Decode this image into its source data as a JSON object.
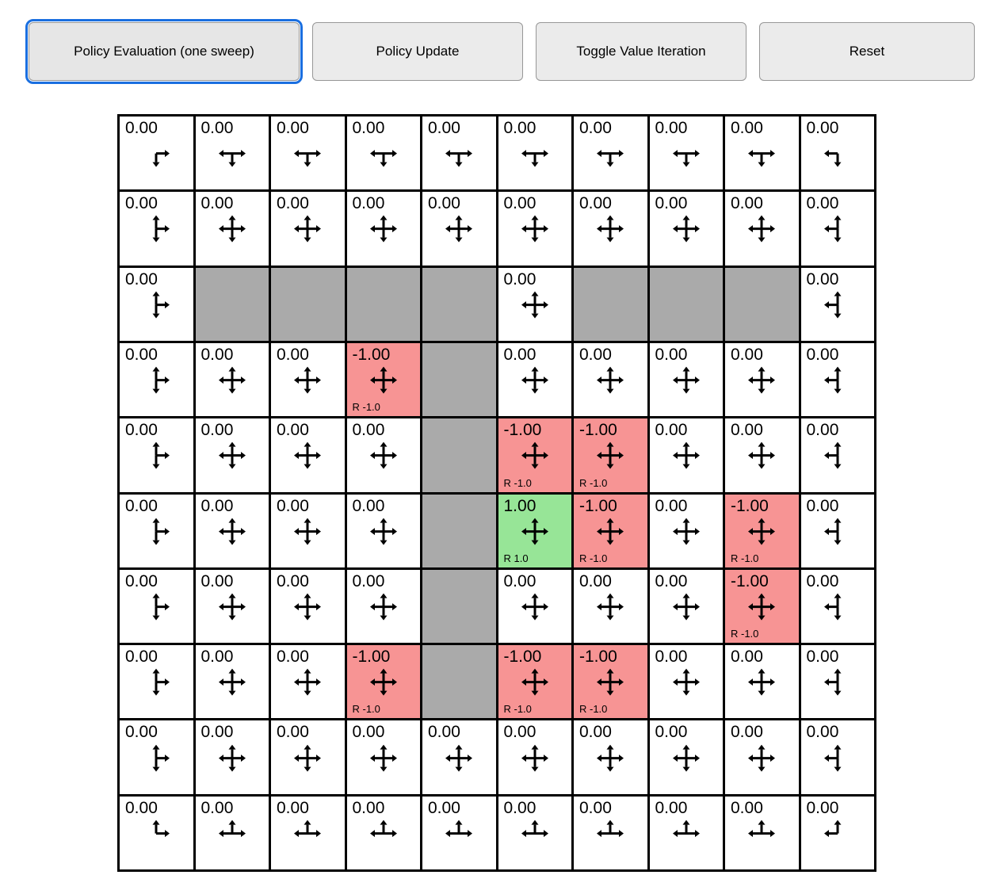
{
  "colors": {
    "accent_focus": "#1a6fe0",
    "wall": "#aaaaaa",
    "negative_reward": "#f79494",
    "positive_reward": "#97e597"
  },
  "toolbar": {
    "buttons": [
      {
        "label": "Policy Evaluation (one sweep)",
        "active": true
      },
      {
        "label": "Policy Update",
        "active": false
      },
      {
        "label": "Toggle Value Iteration",
        "active": false
      },
      {
        "label": "Reset",
        "active": false
      }
    ]
  },
  "grid": {
    "rows": 10,
    "cols": 10,
    "cells": [
      [
        {
          "value": "0.00",
          "arrows": [
            "down",
            "right"
          ]
        },
        {
          "value": "0.00",
          "arrows": [
            "down",
            "left",
            "right"
          ]
        },
        {
          "value": "0.00",
          "arrows": [
            "down",
            "left",
            "right"
          ]
        },
        {
          "value": "0.00",
          "arrows": [
            "down",
            "left",
            "right"
          ]
        },
        {
          "value": "0.00",
          "arrows": [
            "down",
            "left",
            "right"
          ]
        },
        {
          "value": "0.00",
          "arrows": [
            "down",
            "left",
            "right"
          ]
        },
        {
          "value": "0.00",
          "arrows": [
            "down",
            "left",
            "right"
          ]
        },
        {
          "value": "0.00",
          "arrows": [
            "down",
            "left",
            "right"
          ]
        },
        {
          "value": "0.00",
          "arrows": [
            "down",
            "left",
            "right"
          ]
        },
        {
          "value": "0.00",
          "arrows": [
            "down",
            "left"
          ]
        }
      ],
      [
        {
          "value": "0.00",
          "arrows": [
            "up",
            "down",
            "right"
          ]
        },
        {
          "value": "0.00",
          "arrows": [
            "up",
            "down",
            "left",
            "right"
          ]
        },
        {
          "value": "0.00",
          "arrows": [
            "up",
            "down",
            "left",
            "right"
          ]
        },
        {
          "value": "0.00",
          "arrows": [
            "up",
            "down",
            "left",
            "right"
          ]
        },
        {
          "value": "0.00",
          "arrows": [
            "up",
            "down",
            "left",
            "right"
          ]
        },
        {
          "value": "0.00",
          "arrows": [
            "up",
            "down",
            "left",
            "right"
          ]
        },
        {
          "value": "0.00",
          "arrows": [
            "up",
            "down",
            "left",
            "right"
          ]
        },
        {
          "value": "0.00",
          "arrows": [
            "up",
            "down",
            "left",
            "right"
          ]
        },
        {
          "value": "0.00",
          "arrows": [
            "up",
            "down",
            "left",
            "right"
          ]
        },
        {
          "value": "0.00",
          "arrows": [
            "up",
            "down",
            "left"
          ]
        }
      ],
      [
        {
          "value": "0.00",
          "arrows": [
            "up",
            "down",
            "right"
          ]
        },
        {
          "type": "wall"
        },
        {
          "type": "wall"
        },
        {
          "type": "wall"
        },
        {
          "type": "wall"
        },
        {
          "value": "0.00",
          "arrows": [
            "up",
            "down",
            "left",
            "right"
          ]
        },
        {
          "type": "wall"
        },
        {
          "type": "wall"
        },
        {
          "type": "wall"
        },
        {
          "value": "0.00",
          "arrows": [
            "up",
            "down",
            "left"
          ]
        }
      ],
      [
        {
          "value": "0.00",
          "arrows": [
            "up",
            "down",
            "right"
          ]
        },
        {
          "value": "0.00",
          "arrows": [
            "up",
            "down",
            "left",
            "right"
          ]
        },
        {
          "value": "0.00",
          "arrows": [
            "up",
            "down",
            "left",
            "right"
          ]
        },
        {
          "value": "-1.00",
          "type": "negative",
          "reward": "R -1.0",
          "arrows": [
            "up",
            "down",
            "left",
            "right"
          ]
        },
        {
          "type": "wall"
        },
        {
          "value": "0.00",
          "arrows": [
            "up",
            "down",
            "left",
            "right"
          ]
        },
        {
          "value": "0.00",
          "arrows": [
            "up",
            "down",
            "left",
            "right"
          ]
        },
        {
          "value": "0.00",
          "arrows": [
            "up",
            "down",
            "left",
            "right"
          ]
        },
        {
          "value": "0.00",
          "arrows": [
            "up",
            "down",
            "left",
            "right"
          ]
        },
        {
          "value": "0.00",
          "arrows": [
            "up",
            "down",
            "left"
          ]
        }
      ],
      [
        {
          "value": "0.00",
          "arrows": [
            "up",
            "down",
            "right"
          ]
        },
        {
          "value": "0.00",
          "arrows": [
            "up",
            "down",
            "left",
            "right"
          ]
        },
        {
          "value": "0.00",
          "arrows": [
            "up",
            "down",
            "left",
            "right"
          ]
        },
        {
          "value": "0.00",
          "arrows": [
            "up",
            "down",
            "left",
            "right"
          ]
        },
        {
          "type": "wall"
        },
        {
          "value": "-1.00",
          "type": "negative",
          "reward": "R -1.0",
          "arrows": [
            "up",
            "down",
            "left",
            "right"
          ]
        },
        {
          "value": "-1.00",
          "type": "negative",
          "reward": "R -1.0",
          "arrows": [
            "up",
            "down",
            "left",
            "right"
          ]
        },
        {
          "value": "0.00",
          "arrows": [
            "up",
            "down",
            "left",
            "right"
          ]
        },
        {
          "value": "0.00",
          "arrows": [
            "up",
            "down",
            "left",
            "right"
          ]
        },
        {
          "value": "0.00",
          "arrows": [
            "up",
            "down",
            "left"
          ]
        }
      ],
      [
        {
          "value": "0.00",
          "arrows": [
            "up",
            "down",
            "right"
          ]
        },
        {
          "value": "0.00",
          "arrows": [
            "up",
            "down",
            "left",
            "right"
          ]
        },
        {
          "value": "0.00",
          "arrows": [
            "up",
            "down",
            "left",
            "right"
          ]
        },
        {
          "value": "0.00",
          "arrows": [
            "up",
            "down",
            "left",
            "right"
          ]
        },
        {
          "type": "wall"
        },
        {
          "value": "1.00",
          "type": "positive",
          "reward": "R 1.0",
          "arrows": [
            "up",
            "down",
            "left",
            "right"
          ]
        },
        {
          "value": "-1.00",
          "type": "negative",
          "reward": "R -1.0",
          "arrows": [
            "up",
            "down",
            "left",
            "right"
          ]
        },
        {
          "value": "0.00",
          "arrows": [
            "up",
            "down",
            "left",
            "right"
          ]
        },
        {
          "value": "-1.00",
          "type": "negative",
          "reward": "R -1.0",
          "arrows": [
            "up",
            "down",
            "left",
            "right"
          ]
        },
        {
          "value": "0.00",
          "arrows": [
            "up",
            "down",
            "left"
          ]
        }
      ],
      [
        {
          "value": "0.00",
          "arrows": [
            "up",
            "down",
            "right"
          ]
        },
        {
          "value": "0.00",
          "arrows": [
            "up",
            "down",
            "left",
            "right"
          ]
        },
        {
          "value": "0.00",
          "arrows": [
            "up",
            "down",
            "left",
            "right"
          ]
        },
        {
          "value": "0.00",
          "arrows": [
            "up",
            "down",
            "left",
            "right"
          ]
        },
        {
          "type": "wall"
        },
        {
          "value": "0.00",
          "arrows": [
            "up",
            "down",
            "left",
            "right"
          ]
        },
        {
          "value": "0.00",
          "arrows": [
            "up",
            "down",
            "left",
            "right"
          ]
        },
        {
          "value": "0.00",
          "arrows": [
            "up",
            "down",
            "left",
            "right"
          ]
        },
        {
          "value": "-1.00",
          "type": "negative",
          "reward": "R -1.0",
          "arrows": [
            "up",
            "down",
            "left",
            "right"
          ]
        },
        {
          "value": "0.00",
          "arrows": [
            "up",
            "down",
            "left"
          ]
        }
      ],
      [
        {
          "value": "0.00",
          "arrows": [
            "up",
            "down",
            "right"
          ]
        },
        {
          "value": "0.00",
          "arrows": [
            "up",
            "down",
            "left",
            "right"
          ]
        },
        {
          "value": "0.00",
          "arrows": [
            "up",
            "down",
            "left",
            "right"
          ]
        },
        {
          "value": "-1.00",
          "type": "negative",
          "reward": "R -1.0",
          "arrows": [
            "up",
            "down",
            "left",
            "right"
          ]
        },
        {
          "type": "wall"
        },
        {
          "value": "-1.00",
          "type": "negative",
          "reward": "R -1.0",
          "arrows": [
            "up",
            "down",
            "left",
            "right"
          ]
        },
        {
          "value": "-1.00",
          "type": "negative",
          "reward": "R -1.0",
          "arrows": [
            "up",
            "down",
            "left",
            "right"
          ]
        },
        {
          "value": "0.00",
          "arrows": [
            "up",
            "down",
            "left",
            "right"
          ]
        },
        {
          "value": "0.00",
          "arrows": [
            "up",
            "down",
            "left",
            "right"
          ]
        },
        {
          "value": "0.00",
          "arrows": [
            "up",
            "down",
            "left"
          ]
        }
      ],
      [
        {
          "value": "0.00",
          "arrows": [
            "up",
            "down",
            "right"
          ]
        },
        {
          "value": "0.00",
          "arrows": [
            "up",
            "down",
            "left",
            "right"
          ]
        },
        {
          "value": "0.00",
          "arrows": [
            "up",
            "down",
            "left",
            "right"
          ]
        },
        {
          "value": "0.00",
          "arrows": [
            "up",
            "down",
            "left",
            "right"
          ]
        },
        {
          "value": "0.00",
          "arrows": [
            "up",
            "down",
            "left",
            "right"
          ]
        },
        {
          "value": "0.00",
          "arrows": [
            "up",
            "down",
            "left",
            "right"
          ]
        },
        {
          "value": "0.00",
          "arrows": [
            "up",
            "down",
            "left",
            "right"
          ]
        },
        {
          "value": "0.00",
          "arrows": [
            "up",
            "down",
            "left",
            "right"
          ]
        },
        {
          "value": "0.00",
          "arrows": [
            "up",
            "down",
            "left",
            "right"
          ]
        },
        {
          "value": "0.00",
          "arrows": [
            "up",
            "down",
            "left"
          ]
        }
      ],
      [
        {
          "value": "0.00",
          "arrows": [
            "up",
            "right"
          ]
        },
        {
          "value": "0.00",
          "arrows": [
            "up",
            "left",
            "right"
          ]
        },
        {
          "value": "0.00",
          "arrows": [
            "up",
            "left",
            "right"
          ]
        },
        {
          "value": "0.00",
          "arrows": [
            "up",
            "left",
            "right"
          ]
        },
        {
          "value": "0.00",
          "arrows": [
            "up",
            "left",
            "right"
          ]
        },
        {
          "value": "0.00",
          "arrows": [
            "up",
            "left",
            "right"
          ]
        },
        {
          "value": "0.00",
          "arrows": [
            "up",
            "left",
            "right"
          ]
        },
        {
          "value": "0.00",
          "arrows": [
            "up",
            "left",
            "right"
          ]
        },
        {
          "value": "0.00",
          "arrows": [
            "up",
            "left",
            "right"
          ]
        },
        {
          "value": "0.00",
          "arrows": [
            "up",
            "left"
          ]
        }
      ]
    ]
  }
}
